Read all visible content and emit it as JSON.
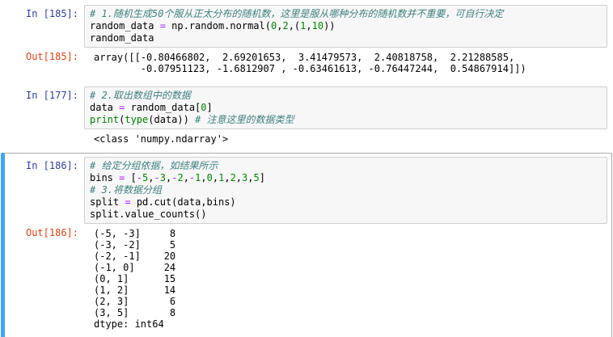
{
  "colors": {
    "page_background": "#ffffff",
    "input_prompt": "#303F9F",
    "output_prompt": "#D84315",
    "code_background": "#F7F7F7",
    "code_border": "#CFCFCF",
    "selected_cell_border": "#ababab",
    "selected_cell_bar": "#42A5F5",
    "comment": "#408080",
    "number": "#008800",
    "operator": "#AA22FF",
    "builtin": "#008000"
  },
  "notebook": {
    "cells": [
      {
        "type": "code",
        "selected": false,
        "in_prompt": "In [185]:",
        "out_prompt": "Out[185]:",
        "code_lines": [
          [
            {
              "t": "comment",
              "s": "# 1.随机生成50个服从正太分布的随机数，这里是服从哪种分布的随机数并不重要，可自行决定"
            }
          ],
          [
            {
              "t": "plain",
              "s": "random_data "
            },
            {
              "t": "op",
              "s": "="
            },
            {
              "t": "plain",
              "s": " np.random.normal("
            },
            {
              "t": "num",
              "s": "0"
            },
            {
              "t": "plain",
              "s": ","
            },
            {
              "t": "num",
              "s": "2"
            },
            {
              "t": "plain",
              "s": ",("
            },
            {
              "t": "num",
              "s": "1"
            },
            {
              "t": "plain",
              "s": ","
            },
            {
              "t": "num",
              "s": "10"
            },
            {
              "t": "plain",
              "s": "))"
            }
          ],
          [
            {
              "t": "plain",
              "s": "random_data"
            }
          ]
        ],
        "output_lines": [
          "array([[-0.80466802,  2.69201653,  3.41479573,  2.40818758,  2.21288585,",
          "        -0.07951123, -1.6812907 , -0.63461613, -0.76447244,  0.54867914]])"
        ]
      },
      {
        "type": "code",
        "selected": false,
        "in_prompt": "In [177]:",
        "out_prompt": "",
        "code_lines": [
          [
            {
              "t": "comment",
              "s": "# 2.取出数组中的数据"
            }
          ],
          [
            {
              "t": "plain",
              "s": "data "
            },
            {
              "t": "op",
              "s": "="
            },
            {
              "t": "plain",
              "s": " random_data["
            },
            {
              "t": "num",
              "s": "0"
            },
            {
              "t": "plain",
              "s": "]"
            }
          ],
          [
            {
              "t": "builtin",
              "s": "print"
            },
            {
              "t": "plain",
              "s": "("
            },
            {
              "t": "builtin",
              "s": "type"
            },
            {
              "t": "plain",
              "s": "(data)) "
            },
            {
              "t": "comment",
              "s": "# 注意这里的数据类型"
            }
          ]
        ],
        "output_lines": [
          "<class 'numpy.ndarray'>"
        ]
      },
      {
        "type": "code",
        "selected": true,
        "in_prompt": "In [186]:",
        "out_prompt": "Out[186]:",
        "code_lines": [
          [
            {
              "t": "comment",
              "s": "# 给定分组依据，如结果所示"
            }
          ],
          [
            {
              "t": "plain",
              "s": "bins "
            },
            {
              "t": "op",
              "s": "="
            },
            {
              "t": "plain",
              "s": " ["
            },
            {
              "t": "op",
              "s": "-"
            },
            {
              "t": "num",
              "s": "5"
            },
            {
              "t": "plain",
              "s": ","
            },
            {
              "t": "op",
              "s": "-"
            },
            {
              "t": "num",
              "s": "3"
            },
            {
              "t": "plain",
              "s": ","
            },
            {
              "t": "op",
              "s": "-"
            },
            {
              "t": "num",
              "s": "2"
            },
            {
              "t": "plain",
              "s": ","
            },
            {
              "t": "op",
              "s": "-"
            },
            {
              "t": "num",
              "s": "1"
            },
            {
              "t": "plain",
              "s": ","
            },
            {
              "t": "num",
              "s": "0"
            },
            {
              "t": "plain",
              "s": ","
            },
            {
              "t": "num",
              "s": "1"
            },
            {
              "t": "plain",
              "s": ","
            },
            {
              "t": "num",
              "s": "2"
            },
            {
              "t": "plain",
              "s": ","
            },
            {
              "t": "num",
              "s": "3"
            },
            {
              "t": "plain",
              "s": ","
            },
            {
              "t": "num",
              "s": "5"
            },
            {
              "t": "plain",
              "s": "]"
            }
          ],
          [
            {
              "t": "comment",
              "s": "# 3.将数据分组"
            }
          ],
          [
            {
              "t": "plain",
              "s": "split "
            },
            {
              "t": "op",
              "s": "="
            },
            {
              "t": "plain",
              "s": " pd.cut(data,bins)"
            }
          ],
          [
            {
              "t": "plain",
              "s": "split.value_counts()"
            }
          ]
        ],
        "output_lines": [
          "(-5, -3]     8",
          "(-3, -2]     5",
          "(-2, -1]    20",
          "(-1, 0]     24",
          "(0, 1]      15",
          "(1, 2]      14",
          "(2, 3]       6",
          "(3, 5]       8",
          "dtype: int64"
        ],
        "value_counts": {
          "bins_labels": [
            "(-5, -3]",
            "(-3, -2]",
            "(-2, -1]",
            "(-1, 0]",
            "(0, 1]",
            "(1, 2]",
            "(2, 3]",
            "(3, 5]"
          ],
          "counts": [
            8,
            5,
            20,
            24,
            15,
            14,
            6,
            8
          ],
          "dtype": "int64"
        }
      }
    ]
  }
}
